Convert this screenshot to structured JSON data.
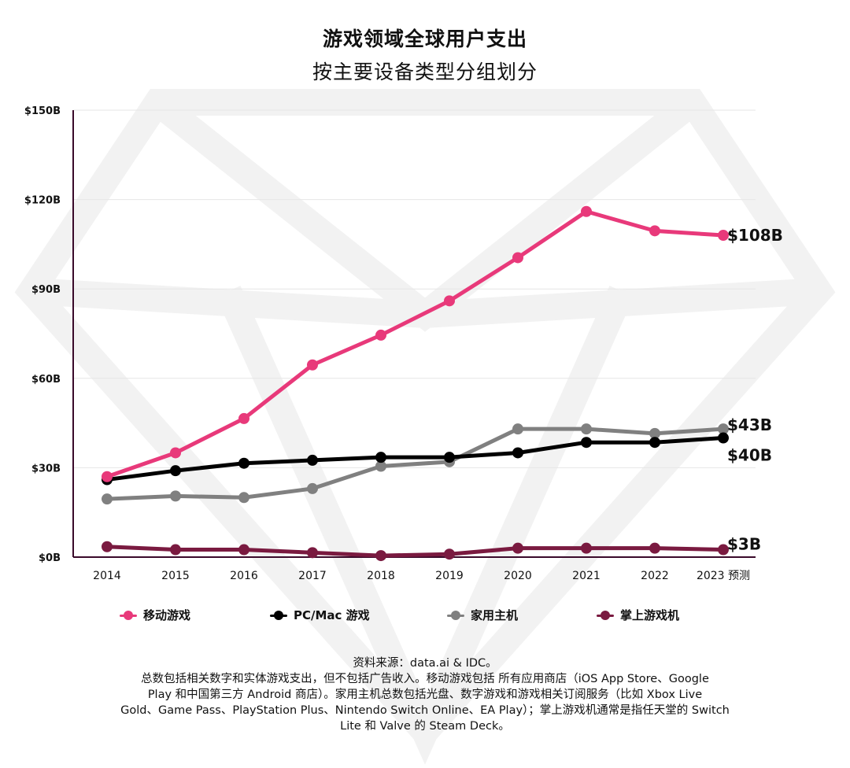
{
  "title": "游戏领域全球用户支出",
  "subtitle": "按主要设备类型分组划分",
  "chart_data": {
    "type": "line",
    "title": "游戏领域全球用户支出",
    "subtitle": "按主要设备类型分组划分",
    "categories": [
      "2014",
      "2015",
      "2016",
      "2017",
      "2018",
      "2019",
      "2020",
      "2021",
      "2022",
      "2023 预测"
    ],
    "yticks": [
      "$0B",
      "$30B",
      "$60B",
      "$90B",
      "$120B",
      "$150B"
    ],
    "ylim": [
      0,
      150
    ],
    "grid": true,
    "legend_position": "bottom",
    "series": [
      {
        "name": "移动游戏",
        "color": "#e8397a",
        "values": [
          27,
          35,
          46.5,
          64.5,
          74.5,
          86,
          100.5,
          116,
          109.5,
          108
        ],
        "end_label": "$108B"
      },
      {
        "name": "PC/Mac 游戏",
        "color": "#000000",
        "values": [
          26,
          29,
          31.5,
          32.5,
          33.5,
          33.5,
          35,
          38.5,
          38.5,
          40
        ],
        "end_label": "$40B"
      },
      {
        "name": "家用主机",
        "color": "#808080",
        "values": [
          19.5,
          20.5,
          20,
          23,
          30.5,
          32,
          43,
          43,
          41.5,
          43
        ],
        "end_label": "$43B"
      },
      {
        "name": "掌上游戏机",
        "color": "#7a1a40",
        "values": [
          3.5,
          2.5,
          2.5,
          1.5,
          0.5,
          1,
          3,
          3,
          3,
          2.5
        ],
        "end_label": "$3B"
      }
    ]
  },
  "footer": {
    "line1": "资料来源：data.ai & IDC。",
    "line2": "总数包括相关数字和实体游戏支出，但不包括广告收入。移动游戏包括 所有应用商店（iOS App Store、Google",
    "line3": "Play 和中国第三方 Android 商店）。家用主机总数包括光盘、数字游戏和游戏相关订阅服务（比如 Xbox Live",
    "line4": "Gold、Game Pass、PlayStation Plus、Nintendo Switch Online、EA Play）；掌上游戏机通常是指任天堂的 Switch",
    "line5": "Lite 和 Valve 的 Steam Deck。"
  }
}
